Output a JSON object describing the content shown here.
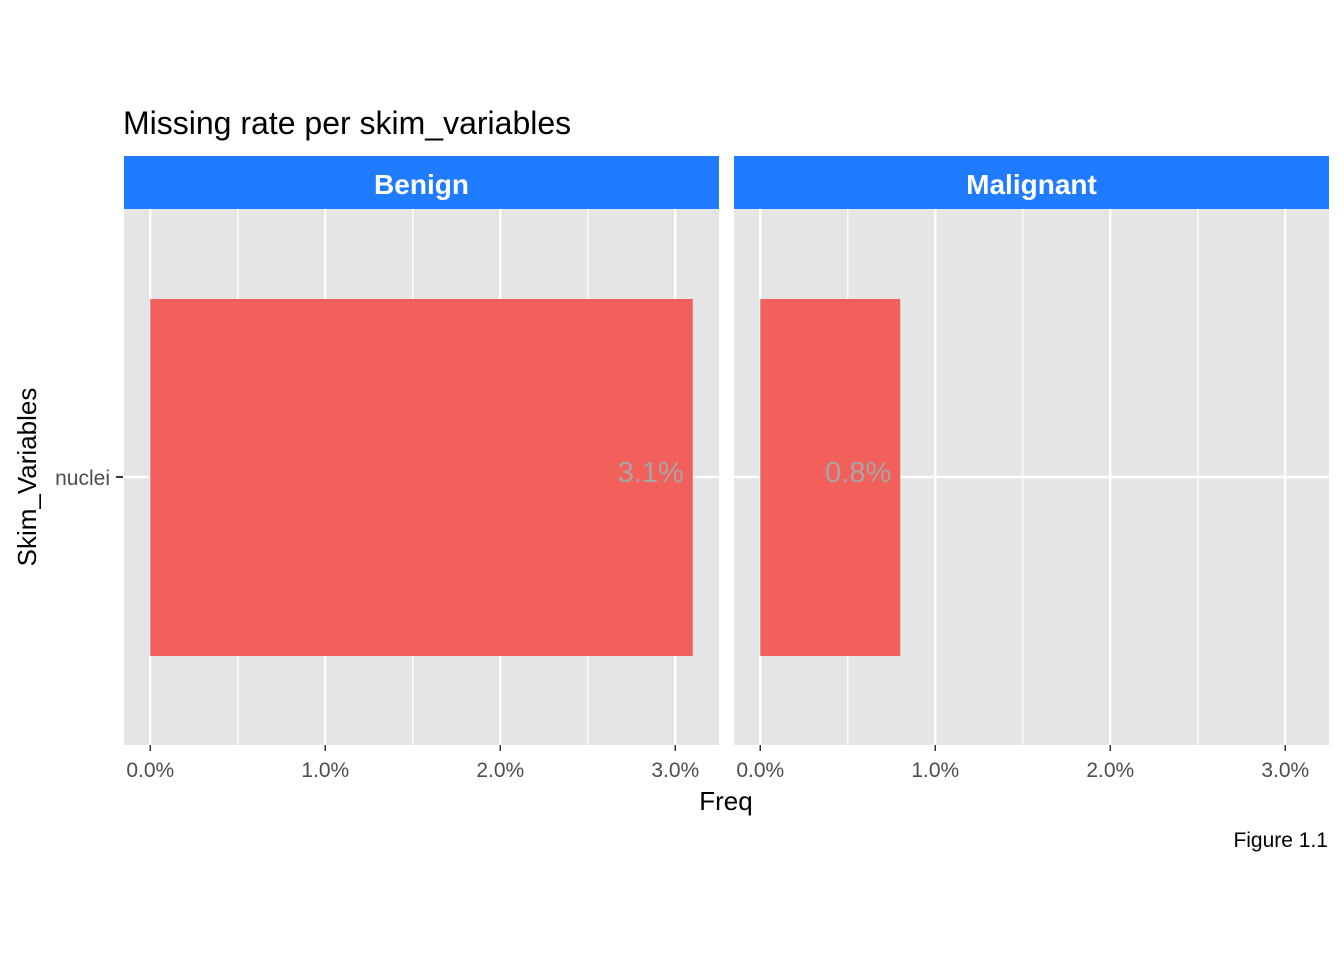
{
  "chart_data": {
    "type": "bar",
    "orientation": "horizontal",
    "title": "Missing rate per skim_variables",
    "xlabel": "Freq",
    "ylabel": "Skim_Variables",
    "caption": "Figure 1.1",
    "categories": [
      "nuclei"
    ],
    "xlim": [
      -0.0015,
      0.0325
    ],
    "x_ticks": [
      0,
      0.01,
      0.02,
      0.03
    ],
    "x_tick_labels": [
      "0.0%",
      "1.0%",
      "2.0%",
      "3.0%"
    ],
    "grid": true,
    "legend": "none",
    "facets": [
      {
        "name": "Benign",
        "values": [
          0.031
        ],
        "labels": [
          "3.1%"
        ]
      },
      {
        "name": "Malignant",
        "values": [
          0.008
        ],
        "labels": [
          "0.8%"
        ]
      }
    ],
    "colors": {
      "bar": "#F2605C",
      "panel": "#E5E5E5",
      "grid": "#FFFFFF",
      "strip": "#1F7BFF",
      "strip_text": "#FFFFFF",
      "data_label": "#A6A6A6"
    }
  }
}
